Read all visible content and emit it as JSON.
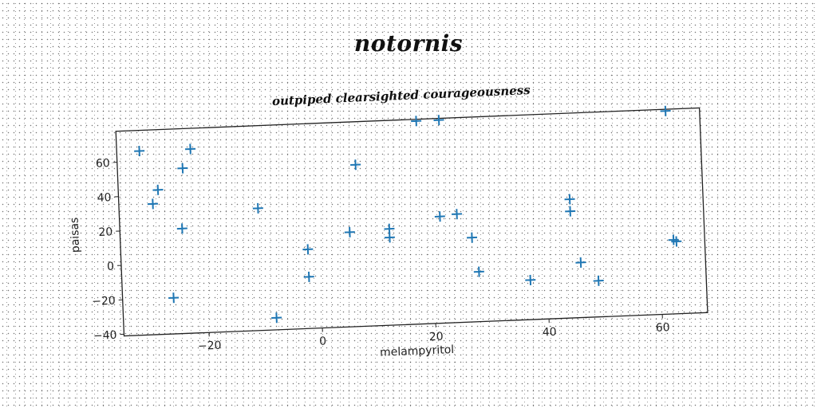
{
  "title": "notornis",
  "chart_data": {
    "type": "scatter",
    "title": "outpiped clearsighted courageousness",
    "xlabel": "melampyritol",
    "ylabel": "paisas",
    "xlim": [
      -35,
      68
    ],
    "ylim": [
      -41,
      78
    ],
    "xticks": [
      -20,
      0,
      20,
      40,
      60
    ],
    "yticks": [
      -40,
      -20,
      0,
      20,
      40,
      60
    ],
    "marker": "+",
    "color": "#1f77b4",
    "grid": false,
    "points": [
      {
        "x": -31,
        "y": 66
      },
      {
        "x": -22,
        "y": 66
      },
      {
        "x": -28,
        "y": 43
      },
      {
        "x": -29,
        "y": 35
      },
      {
        "x": -23.5,
        "y": 55
      },
      {
        "x": -24,
        "y": 20
      },
      {
        "x": -26,
        "y": -20
      },
      {
        "x": -10.5,
        "y": 30
      },
      {
        "x": -8,
        "y": -34
      },
      {
        "x": -2,
        "y": 5
      },
      {
        "x": -2,
        "y": -11
      },
      {
        "x": 5.5,
        "y": 14
      },
      {
        "x": 7,
        "y": 53
      },
      {
        "x": 12.5,
        "y": 15
      },
      {
        "x": 12.5,
        "y": 10
      },
      {
        "x": 18,
        "y": 77
      },
      {
        "x": 22,
        "y": 77
      },
      {
        "x": 21.5,
        "y": 21
      },
      {
        "x": 24.5,
        "y": 22
      },
      {
        "x": 27,
        "y": 8
      },
      {
        "x": 28,
        "y": -12
      },
      {
        "x": 37,
        "y": -18
      },
      {
        "x": 44.5,
        "y": 28
      },
      {
        "x": 44.5,
        "y": 21
      },
      {
        "x": 46,
        "y": -9
      },
      {
        "x": 49,
        "y": -20
      },
      {
        "x": 62,
        "y": 77
      },
      {
        "x": 62.5,
        "y": 2
      },
      {
        "x": 63,
        "y": 1
      }
    ]
  }
}
